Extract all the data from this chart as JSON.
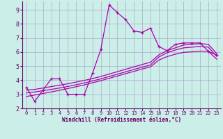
{
  "xlabel": "Windchill (Refroidissement éolien,°C)",
  "bg_color": "#cceee8",
  "grid_color": "#aaaacc",
  "line_color": "#aa00aa",
  "spine_color": "#660066",
  "xlim": [
    -0.5,
    23.5
  ],
  "ylim": [
    2,
    9.6
  ],
  "xticks": [
    0,
    1,
    2,
    3,
    4,
    5,
    6,
    7,
    8,
    9,
    10,
    11,
    12,
    13,
    14,
    15,
    16,
    17,
    18,
    19,
    20,
    21,
    22,
    23
  ],
  "yticks": [
    2,
    3,
    4,
    5,
    6,
    7,
    8,
    9
  ],
  "main_line_x": [
    0,
    1,
    2,
    3,
    4,
    5,
    6,
    7,
    8,
    9,
    10,
    11,
    12,
    13,
    14,
    15,
    16,
    17,
    18,
    19,
    20,
    21,
    22,
    23
  ],
  "main_line_y": [
    3.5,
    2.5,
    3.3,
    4.1,
    4.1,
    3.0,
    3.0,
    3.0,
    4.5,
    6.2,
    9.35,
    8.8,
    8.3,
    7.5,
    7.4,
    7.7,
    6.4,
    6.1,
    6.55,
    6.65,
    6.65,
    6.65,
    6.05,
    5.8
  ],
  "smooth1_x": [
    0,
    1,
    2,
    3,
    4,
    5,
    6,
    7,
    8,
    9,
    10,
    11,
    12,
    13,
    14,
    15,
    16,
    17,
    18,
    19,
    20,
    21,
    22,
    23
  ],
  "smooth1_y": [
    3.3,
    3.35,
    3.45,
    3.55,
    3.65,
    3.75,
    3.87,
    3.99,
    4.12,
    4.27,
    4.44,
    4.61,
    4.78,
    4.95,
    5.12,
    5.28,
    5.8,
    6.1,
    6.3,
    6.5,
    6.55,
    6.6,
    6.55,
    5.9
  ],
  "smooth2_x": [
    0,
    1,
    2,
    3,
    4,
    5,
    6,
    7,
    8,
    9,
    10,
    11,
    12,
    13,
    14,
    15,
    16,
    17,
    18,
    19,
    20,
    21,
    22,
    23
  ],
  "smooth2_y": [
    3.1,
    3.17,
    3.26,
    3.35,
    3.45,
    3.56,
    3.68,
    3.81,
    3.95,
    4.1,
    4.27,
    4.43,
    4.6,
    4.77,
    4.93,
    5.09,
    5.65,
    5.95,
    6.15,
    6.3,
    6.35,
    6.4,
    6.35,
    5.7
  ],
  "smooth3_x": [
    0,
    1,
    2,
    3,
    4,
    5,
    6,
    7,
    8,
    9,
    10,
    11,
    12,
    13,
    14,
    15,
    16,
    17,
    18,
    19,
    20,
    21,
    22,
    23
  ],
  "smooth3_y": [
    2.85,
    2.95,
    3.06,
    3.17,
    3.29,
    3.41,
    3.54,
    3.67,
    3.82,
    3.97,
    4.14,
    4.3,
    4.47,
    4.63,
    4.8,
    4.95,
    5.43,
    5.68,
    5.85,
    5.98,
    6.02,
    6.07,
    6.05,
    5.5
  ]
}
